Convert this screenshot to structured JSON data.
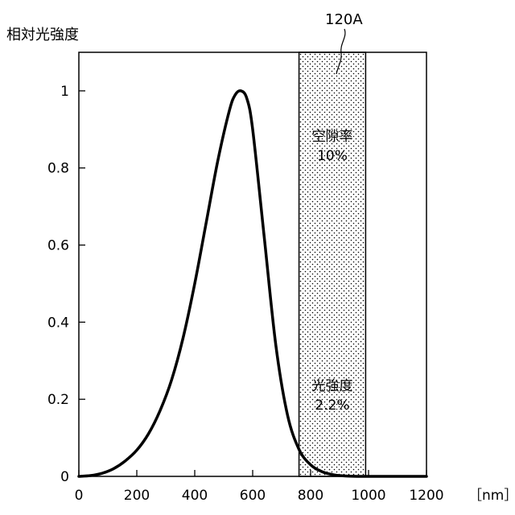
{
  "chart_data": {
    "type": "line",
    "title": "",
    "ylabel": "相対光強度",
    "xlabel": "",
    "x_unit": "［nm］",
    "xlim": [
      0,
      1200
    ],
    "ylim": [
      0,
      1.1
    ],
    "x_ticks": [
      0,
      200,
      400,
      600,
      800,
      1000,
      1200
    ],
    "x_tick_labels": [
      "0",
      "200",
      "400",
      "600",
      "800",
      "1000",
      "1200"
    ],
    "y_ticks": [
      0,
      0.2,
      0.4,
      0.6,
      0.8,
      1
    ],
    "y_tick_labels": [
      "0",
      "0.2",
      "0.4",
      "0.6",
      "0.8",
      "1"
    ],
    "series": [
      {
        "x": [
          0,
          40,
          80,
          120,
          160,
          200,
          240,
          280,
          320,
          360,
          400,
          440,
          480,
          520,
          540,
          560,
          580,
          600,
          640,
          680,
          720,
          760,
          800,
          840,
          880,
          920,
          960,
          1000,
          1100,
          1200
        ],
        "y": [
          0,
          0.002,
          0.008,
          0.02,
          0.04,
          0.068,
          0.11,
          0.17,
          0.25,
          0.36,
          0.5,
          0.66,
          0.82,
          0.95,
          0.99,
          1.0,
          0.98,
          0.9,
          0.62,
          0.34,
          0.16,
          0.07,
          0.03,
          0.012,
          0.004,
          0.001,
          0,
          0,
          0,
          0
        ]
      }
    ],
    "band": {
      "label": "120A",
      "x_start": 760,
      "x_end": 990,
      "pattern": "dotted",
      "annotations": [
        {
          "line1": "空隙率",
          "line2": "10%"
        },
        {
          "line1": "光強度",
          "line2": "2.2%"
        }
      ]
    }
  }
}
